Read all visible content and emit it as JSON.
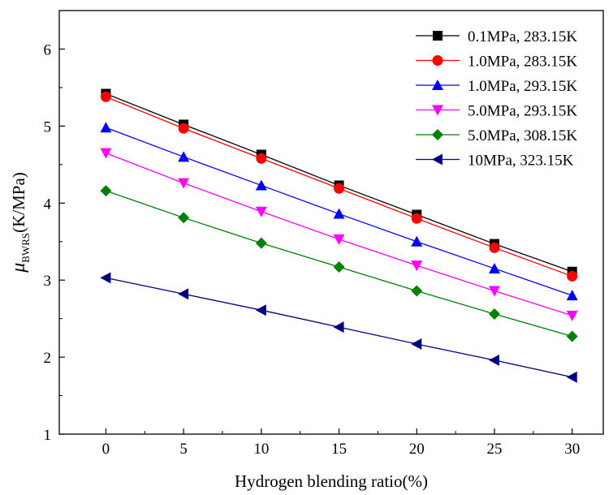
{
  "chart_data": {
    "type": "line",
    "xlabel": "Hydrogen blending ratio(%)",
    "ylabel_symbol": "μ",
    "ylabel_subscript": "BWRS",
    "ylabel_unit": "(K/MPa)",
    "xlim": [
      -3,
      32
    ],
    "ylim": [
      1,
      6.5
    ],
    "xticks": [
      0,
      5,
      10,
      15,
      20,
      25,
      30
    ],
    "yticks": [
      1,
      2,
      3,
      4,
      5,
      6
    ],
    "grid": false,
    "legend_position": "top-right",
    "x": [
      0,
      5,
      10,
      15,
      20,
      25,
      30
    ],
    "series": [
      {
        "name": "0.1MPa, 283.15K",
        "color": "#000000",
        "marker": "square",
        "values": [
          5.42,
          5.02,
          4.63,
          4.23,
          3.85,
          3.47,
          3.11
        ]
      },
      {
        "name": "1.0MPa, 283.15K",
        "color": "#ff0000",
        "marker": "circle",
        "values": [
          5.38,
          4.97,
          4.58,
          4.19,
          3.8,
          3.42,
          3.05
        ]
      },
      {
        "name": "1.0MPa, 293.15K",
        "color": "#0000ff",
        "marker": "triangle-up",
        "values": [
          4.98,
          4.6,
          4.23,
          3.86,
          3.5,
          3.15,
          2.8
        ]
      },
      {
        "name": "5.0MPa, 293.15K",
        "color": "#ff00ff",
        "marker": "triangle-down",
        "values": [
          4.65,
          4.26,
          3.89,
          3.53,
          3.19,
          2.86,
          2.54
        ]
      },
      {
        "name": "5.0MPa, 308.15K",
        "color": "#008000",
        "marker": "diamond",
        "values": [
          4.16,
          3.81,
          3.48,
          3.17,
          2.86,
          2.56,
          2.27
        ]
      },
      {
        "name": "10MPa, 323.15K",
        "color": "#000080",
        "marker": "triangle-left",
        "values": [
          3.03,
          2.82,
          2.61,
          2.39,
          2.17,
          1.96,
          1.74
        ]
      }
    ]
  }
}
